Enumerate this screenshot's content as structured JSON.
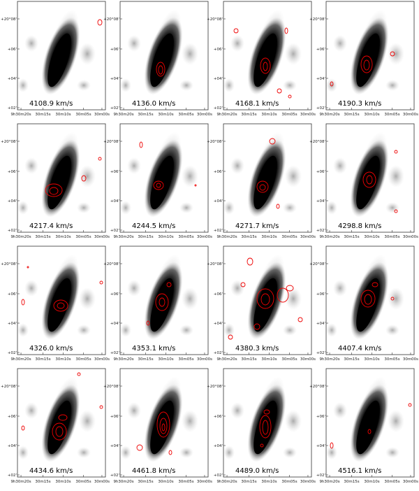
{
  "figure": {
    "yticks": [
      "+20°08'",
      "+06'",
      "+04'",
      "+02'"
    ],
    "xticks": [
      "9h30m20s",
      "30m15s",
      "30m10s",
      "30m05s",
      "30m00s"
    ],
    "panels": [
      {
        "label": "4108.9 km/s"
      },
      {
        "label": "4136.0 km/s"
      },
      {
        "label": "4168.1 km/s"
      },
      {
        "label": "4190.3 km/s"
      },
      {
        "label": "4217.4 km/s"
      },
      {
        "label": "4244.5 km/s"
      },
      {
        "label": "4271.7 km/s"
      },
      {
        "label": "4298.8 km/s"
      },
      {
        "label": "4326.0 km/s"
      },
      {
        "label": "4353.1 km/s"
      },
      {
        "label": "4380.3 km/s"
      },
      {
        "label": "4407.4 km/s"
      },
      {
        "label": "4434.6 km/s"
      },
      {
        "label": "4461.8 km/s"
      },
      {
        "label": "4489.0 km/s"
      },
      {
        "label": "4516.1 km/s"
      }
    ]
  }
}
